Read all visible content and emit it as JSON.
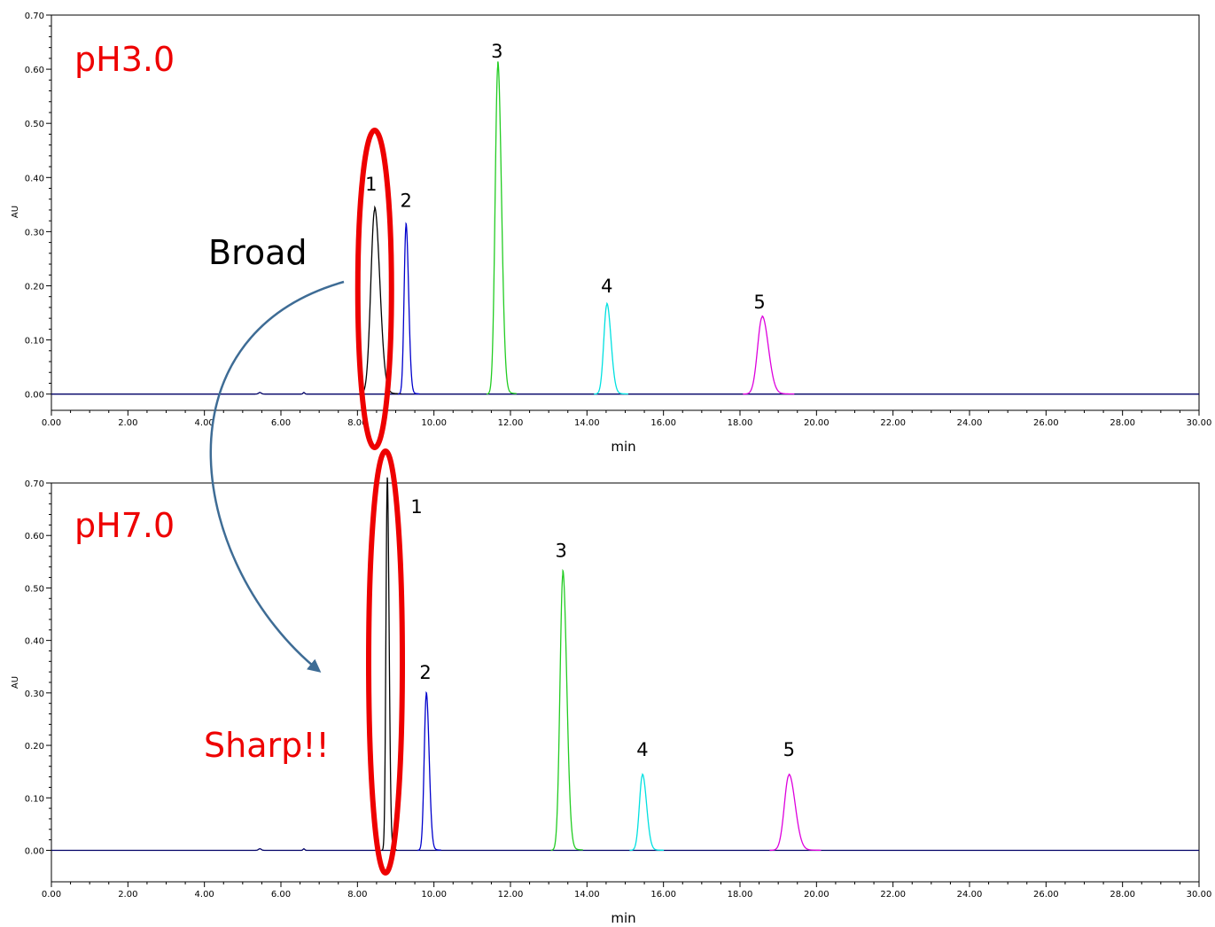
{
  "colors": {
    "series": [
      "#000000",
      "#0000cc",
      "#22cc22",
      "#00e0e0",
      "#dd00dd"
    ],
    "baseline": "#000066",
    "highlight": "#ee0000",
    "arrow": "#3e6c95",
    "ph_label": "#ee0000",
    "broad_label": "#000000",
    "sharp_label": "#ee0000"
  },
  "annotations": {
    "broad": "Broad",
    "sharp": "Sharp!!",
    "arrow_from": "pH3.0 peak 1",
    "arrow_to": "pH7.0 peak 1"
  },
  "chart_data": [
    {
      "type": "line",
      "title": "pH3.0",
      "xlabel": "min",
      "ylabel": "AU",
      "xlim": [
        0,
        30
      ],
      "ylim": [
        -0.03,
        0.7
      ],
      "xticks": [
        "0.00",
        "2.00",
        "4.00",
        "6.00",
        "8.00",
        "10.00",
        "12.00",
        "14.00",
        "16.00",
        "18.00",
        "20.00",
        "22.00",
        "24.00",
        "26.00",
        "28.00",
        "30.00"
      ],
      "yticks": [
        "0.00",
        "0.10",
        "0.20",
        "0.30",
        "0.40",
        "0.50",
        "0.60",
        "0.70"
      ],
      "peaks": [
        {
          "label": "1",
          "rt": 8.45,
          "height": 0.34,
          "width": 0.1
        },
        {
          "label": "2",
          "rt": 9.27,
          "height": 0.31,
          "width": 0.05
        },
        {
          "label": "3",
          "rt": 11.67,
          "height": 0.605,
          "width": 0.07
        },
        {
          "label": "4",
          "rt": 14.52,
          "height": 0.165,
          "width": 0.08
        },
        {
          "label": "5",
          "rt": 18.58,
          "height": 0.142,
          "width": 0.12
        }
      ],
      "highlight_peak": "1"
    },
    {
      "type": "line",
      "title": "pH7.0",
      "xlabel": "min",
      "ylabel": "AU",
      "xlim": [
        0,
        30
      ],
      "ylim": [
        -0.06,
        0.7
      ],
      "xticks": [
        "0.00",
        "2.00",
        "4.00",
        "6.00",
        "8.00",
        "10.00",
        "12.00",
        "14.00",
        "16.00",
        "18.00",
        "20.00",
        "22.00",
        "24.00",
        "26.00",
        "28.00",
        "30.00"
      ],
      "yticks": [
        "0.00",
        "0.10",
        "0.20",
        "0.30",
        "0.40",
        "0.50",
        "0.60",
        "0.70"
      ],
      "peaks": [
        {
          "label": "1",
          "rt": 8.78,
          "height": 0.7,
          "width": 0.035
        },
        {
          "label": "2",
          "rt": 9.8,
          "height": 0.296,
          "width": 0.055
        },
        {
          "label": "3",
          "rt": 13.37,
          "height": 0.525,
          "width": 0.075
        },
        {
          "label": "4",
          "rt": 15.45,
          "height": 0.143,
          "width": 0.08
        },
        {
          "label": "5",
          "rt": 19.28,
          "height": 0.143,
          "width": 0.12
        }
      ],
      "highlight_peak": "1"
    }
  ]
}
